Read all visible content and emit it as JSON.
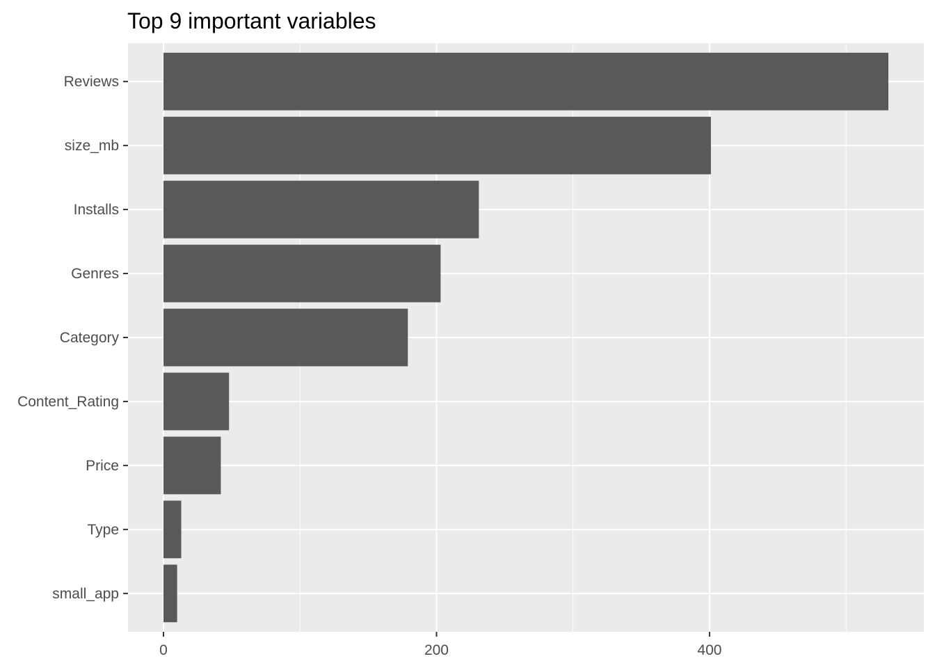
{
  "chart_data": {
    "type": "bar",
    "orientation": "horizontal",
    "title": "Top 9 important variables",
    "xlabel": "",
    "ylabel": "",
    "categories": [
      "Reviews",
      "size_mb",
      "Installs",
      "Genres",
      "Category",
      "Content_Rating",
      "Price",
      "Type",
      "small_app"
    ],
    "values": [
      531,
      401,
      231,
      203,
      179,
      48,
      42,
      13,
      10
    ],
    "xlim": [
      -26,
      557
    ],
    "x_ticks": [
      0,
      200,
      400
    ],
    "x_minor_ticks": [
      100,
      300,
      500
    ],
    "grid": true,
    "legend": "none",
    "colors": {
      "bar": "#595959",
      "panel_background": "#ebebeb",
      "grid": "#ffffff",
      "axis_text": "#4d4d4d",
      "title": "#000000"
    }
  }
}
